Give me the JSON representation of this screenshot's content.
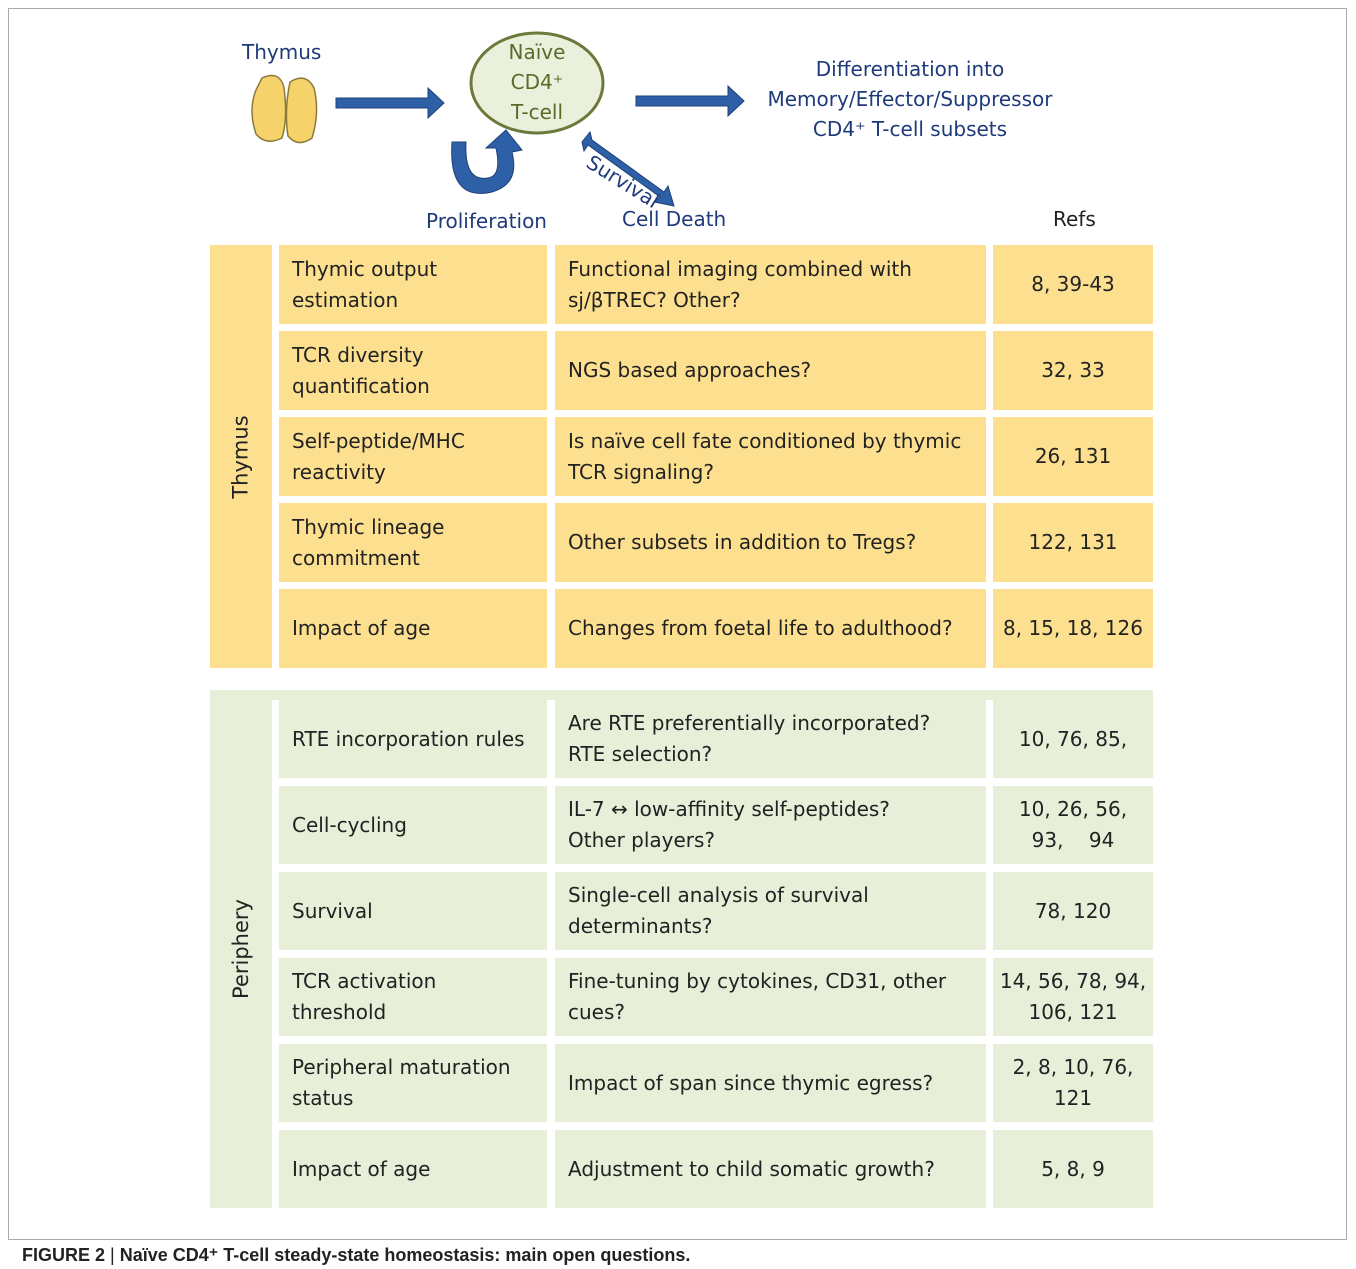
{
  "header": {
    "thymus_label": "Thymus",
    "cell_lines": [
      "Naïve",
      "CD4⁺",
      "T-cell"
    ],
    "differentiation_lines": [
      "Differentiation into",
      "Memory/Effector/Suppressor",
      "CD4⁺ T-cell subsets"
    ],
    "survival": "Survival",
    "proliferation": "Proliferation",
    "cell_death": "Cell Death",
    "refs_header": "Refs"
  },
  "sections": [
    {
      "name": "Thymus",
      "rows": [
        {
          "label": [
            "Thymic output",
            "estimation"
          ],
          "question": [
            "Functional imaging combined with",
            "sj/βTREC? Other?"
          ],
          "refs": [
            "8, 39-43"
          ]
        },
        {
          "label": [
            "TCR diversity",
            "quantification"
          ],
          "question": [
            "NGS based approaches?"
          ],
          "refs": [
            "32, 33"
          ]
        },
        {
          "label": [
            "Self-peptide/MHC",
            "reactivity"
          ],
          "question": [
            "Is naïve cell fate conditioned by thymic",
            "TCR signaling?"
          ],
          "refs": [
            "26, 131"
          ]
        },
        {
          "label": [
            "Thymic lineage",
            "commitment"
          ],
          "question": [
            "Other subsets in addition to Tregs?"
          ],
          "refs": [
            "122, 131"
          ]
        },
        {
          "label": [
            "Impact of age"
          ],
          "question": [
            "Changes from foetal life to adulthood?"
          ],
          "refs": [
            "8, 15, 18, 126"
          ]
        }
      ]
    },
    {
      "name": "Periphery",
      "rows": [
        {
          "label": [
            "RTE incorporation rules"
          ],
          "question": [
            "Are RTE preferentially incorporated?",
            "RTE selection?"
          ],
          "refs": [
            "10, 76, 85,"
          ]
        },
        {
          "label": [
            "Cell-cycling"
          ],
          "question": [
            "IL-7 ↔ low-affinity self-peptides?",
            "Other players?"
          ],
          "refs": [
            "10, 26, 56,",
            "93,    94"
          ]
        },
        {
          "label": [
            "Survival"
          ],
          "question": [
            "Single-cell analysis of survival",
            "determinants?"
          ],
          "refs": [
            "78, 120"
          ]
        },
        {
          "label": [
            "TCR activation",
            "threshold"
          ],
          "question": [
            "Fine-tuning by cytokines, CD31, other",
            "cues?"
          ],
          "refs": [
            "14, 56, 78, 94,",
            "106, 121"
          ]
        },
        {
          "label": [
            "Peripheral maturation",
            "status"
          ],
          "question": [
            "Impact of span since thymic egress?"
          ],
          "refs": [
            "2, 8, 10, 76,",
            "121"
          ]
        },
        {
          "label": [
            "Impact of age"
          ],
          "question": [
            "Adjustment to child somatic growth?"
          ],
          "refs": [
            "5, 8, 9"
          ]
        }
      ]
    }
  ],
  "caption": {
    "label": "FIGURE 2",
    "separator": "|",
    "text": "Naïve CD4⁺ T-cell steady-state homeostasis: main open questions."
  }
}
